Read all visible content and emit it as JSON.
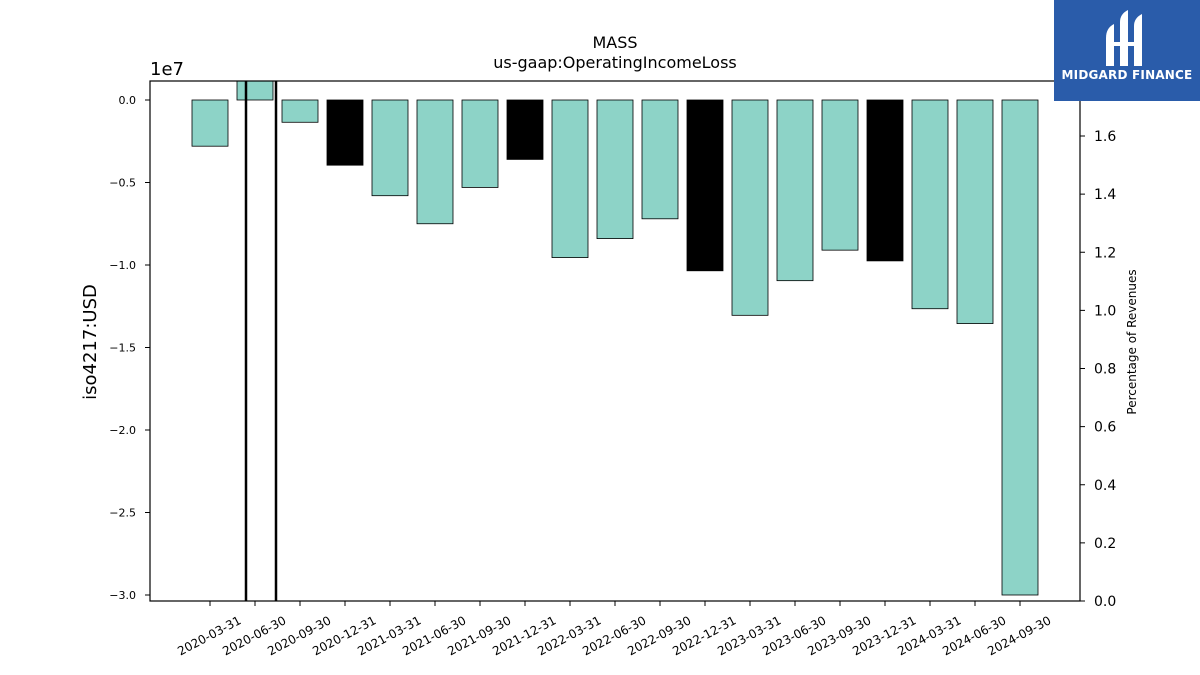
{
  "brand": {
    "name": "MIDGARD FINANCE",
    "icon": "midgard-logo-icon",
    "color": "#2a5caa"
  },
  "chart_data": {
    "type": "bar",
    "title": "MASS",
    "subtitle": "us-gaap:OperatingIncomeLoss",
    "ylabel": "iso4217:USD",
    "y2label": "Percentage of Revenues",
    "y_offset_label": "1e7",
    "ylim": [
      -3.0,
      0.11
    ],
    "y_scale": 10000000,
    "y_ticks": [
      "0.0",
      "−0.5",
      "−1.0",
      "−1.5",
      "−2.0",
      "−2.5",
      "−3.0"
    ],
    "y2lim": [
      0,
      1.72
    ],
    "y2_ticks": [
      "0.0",
      "0.2",
      "0.4",
      "0.6",
      "0.8",
      "1.0",
      "1.2",
      "1.4",
      "1.6"
    ],
    "categories": [
      "2020-03-31",
      "2020-06-30",
      "2020-09-30",
      "2020-12-31",
      "2021-03-31",
      "2021-06-30",
      "2021-09-30",
      "2021-12-31",
      "2022-03-31",
      "2022-06-30",
      "2022-09-30",
      "2022-12-31",
      "2023-03-31",
      "2023-06-30",
      "2023-09-30",
      "2023-12-31",
      "2024-03-31",
      "2024-06-30",
      "2024-09-30"
    ],
    "series": [
      {
        "values": [
          -0.28,
          0.12,
          -0.135,
          -0.395,
          -0.58,
          -0.75,
          -0.53,
          -0.36,
          -0.955,
          -0.84,
          -0.72,
          -1.035,
          -1.305,
          -1.095,
          -0.91,
          -0.975,
          -1.265,
          -1.355,
          -3.0
        ],
        "highlight": [
          false,
          false,
          false,
          true,
          false,
          false,
          false,
          true,
          false,
          false,
          false,
          true,
          false,
          false,
          false,
          true,
          false,
          false,
          false
        ]
      }
    ],
    "colors": {
      "bar": "#8dd3c7",
      "highlight": "#000000",
      "edge": "#000000"
    },
    "grid": false,
    "legend": "none"
  }
}
